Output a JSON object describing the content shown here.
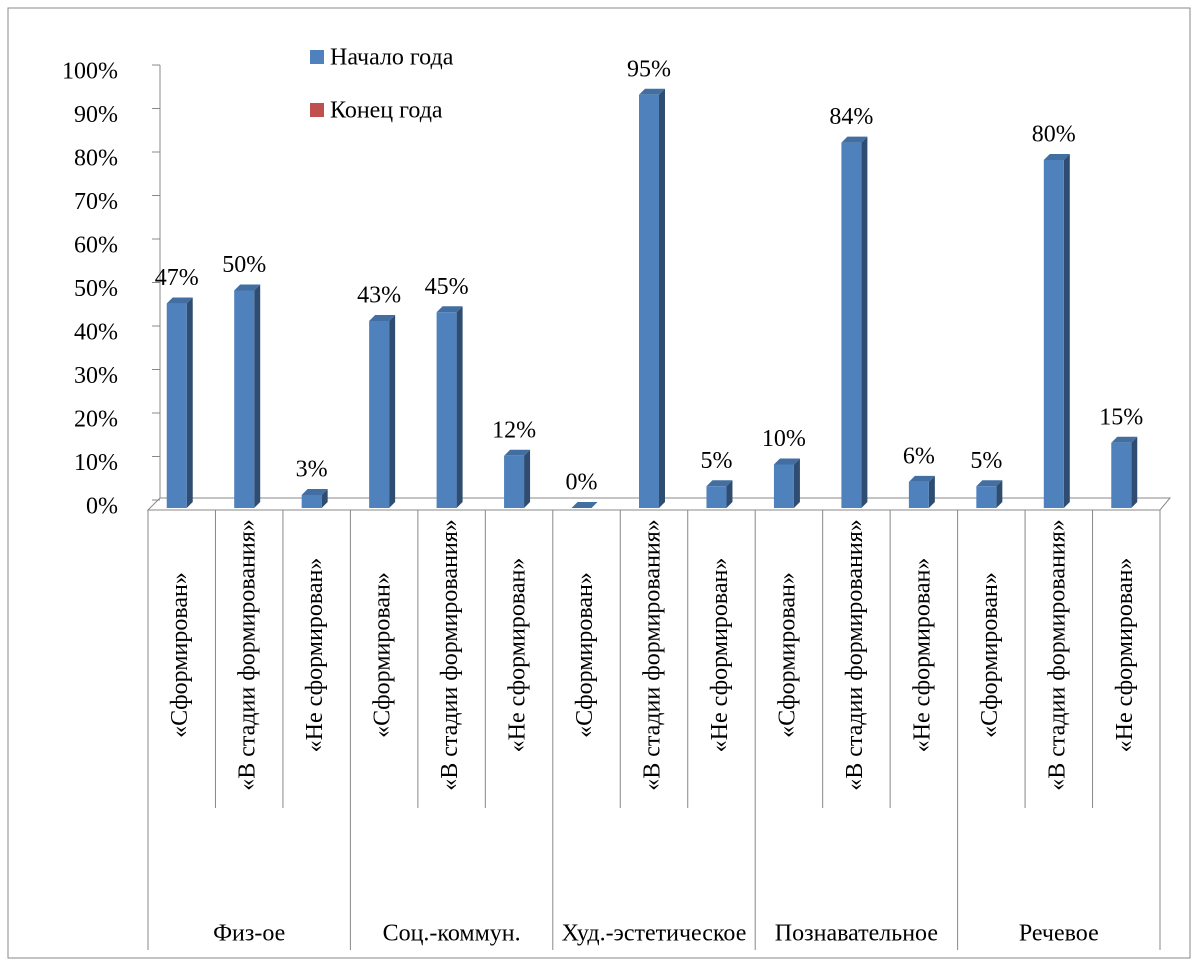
{
  "chart_data": {
    "type": "bar",
    "categories": [
      "«Сформирован»",
      "«В стадии формирования»",
      "«Не сформирован»",
      "«Сформирован»",
      "«В стадии формирования»",
      "«Не сформирован»",
      "«Сформирован»",
      "«В стадии формирования»",
      "«Не сформирован»",
      "«Сформирован»",
      "«В стадии формирования»",
      "«Не сформирован»",
      "«Сформирован»",
      "«В стадии формирования»",
      "«Не сформирован»"
    ],
    "category_groups": [
      "Физ-ое",
      "Соц.-коммун.",
      "Худ.-эстетическое",
      "Познавательное",
      "Речевое"
    ],
    "series": [
      {
        "name": "Начало года",
        "color": "#4f81bd",
        "values": [
          47,
          50,
          3,
          43,
          45,
          12,
          0,
          95,
          5,
          10,
          84,
          6,
          5,
          80,
          15
        ],
        "value_labels": [
          "47%",
          "50%",
          "3%",
          "43%",
          "45%",
          "12%",
          "0%",
          "95%",
          "5%",
          "10%",
          "84%",
          "6%",
          "5%",
          "80%",
          "15%"
        ]
      },
      {
        "name": "Конец года",
        "color": "#c0504d",
        "values": [
          null,
          null,
          null,
          null,
          null,
          null,
          null,
          null,
          null,
          null,
          null,
          null,
          null,
          null,
          null
        ]
      }
    ],
    "ylim": [
      0,
      100
    ],
    "yticks": [
      {
        "value": 0,
        "label": "0%"
      },
      {
        "value": 10,
        "label": "10%"
      },
      {
        "value": 20,
        "label": "20%"
      },
      {
        "value": 30,
        "label": "30%"
      },
      {
        "value": 40,
        "label": "40%"
      },
      {
        "value": 50,
        "label": "50%"
      },
      {
        "value": 60,
        "label": "60%"
      },
      {
        "value": 70,
        "label": "70%"
      },
      {
        "value": 80,
        "label": "80%"
      },
      {
        "value": 90,
        "label": "90%"
      },
      {
        "value": 100,
        "label": "100%"
      }
    ]
  }
}
